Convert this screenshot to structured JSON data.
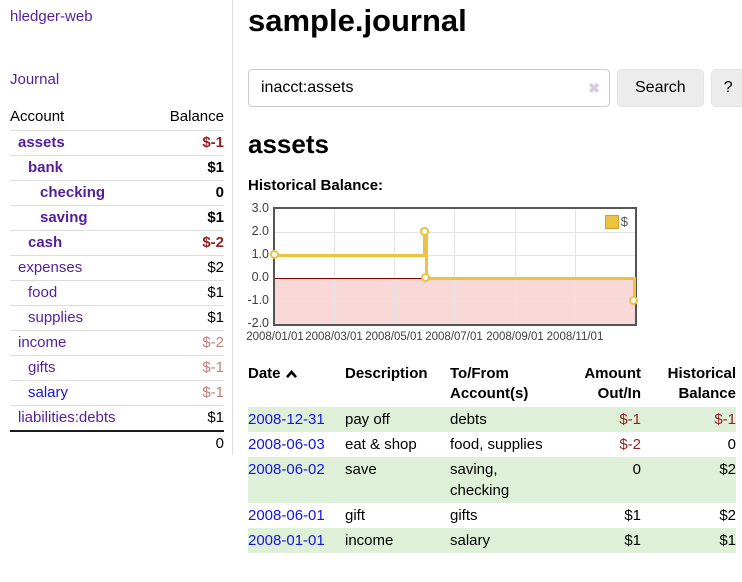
{
  "app_title": "hledger-web",
  "sidebar": {
    "journal_link": "Journal",
    "accounts": {
      "col_account": "Account",
      "col_balance": "Balance",
      "rows": [
        {
          "name": "assets",
          "balance": "$-1"
        },
        {
          "name": "bank",
          "balance": "$1"
        },
        {
          "name": "checking",
          "balance": "0"
        },
        {
          "name": "saving",
          "balance": "$1"
        },
        {
          "name": "cash",
          "balance": "$-2"
        },
        {
          "name": "expenses",
          "balance": "$2"
        },
        {
          "name": "food",
          "balance": "$1"
        },
        {
          "name": "supplies",
          "balance": "$1"
        },
        {
          "name": "income",
          "balance": "$-2"
        },
        {
          "name": "gifts",
          "balance": "$-1"
        },
        {
          "name": "salary",
          "balance": "$-1"
        },
        {
          "name": "liabilities:debts",
          "balance": "$1"
        }
      ],
      "total": "0"
    }
  },
  "main": {
    "title": "sample.journal",
    "search": {
      "value": "inacct:assets",
      "clear_icon": "✖",
      "button_label": "Search",
      "help_label": "?"
    },
    "account_heading": "assets",
    "section_label": "Historical Balance:",
    "register": {
      "headers": {
        "date": "Date",
        "description": "Description",
        "tofrom": "To/From Account(s)",
        "amount": "Amount Out/In",
        "balance": "Historical Balance"
      },
      "rows": [
        {
          "date": "2008-12-31",
          "description": "pay off",
          "accounts": "debts",
          "amount": "$-1",
          "balance": "$-1"
        },
        {
          "date": "2008-06-03",
          "description": "eat & shop",
          "accounts": "food, supplies",
          "amount": "$-2",
          "balance": "0"
        },
        {
          "date": "2008-06-02",
          "description": "save",
          "accounts": "saving, checking",
          "amount": "0",
          "balance": "$2"
        },
        {
          "date": "2008-06-01",
          "description": "gift",
          "accounts": "gifts",
          "amount": "$1",
          "balance": "$2"
        },
        {
          "date": "2008-01-01",
          "description": "income",
          "accounts": "salary",
          "amount": "$1",
          "balance": "$1"
        }
      ]
    }
  },
  "chart_data": {
    "type": "line",
    "title": "Historical Balance",
    "step": true,
    "series": [
      {
        "name": "$",
        "color": "#EDC240",
        "points": [
          [
            "2008-01-01",
            1
          ],
          [
            "2008-06-01",
            2
          ],
          [
            "2008-06-02",
            2
          ],
          [
            "2008-06-03",
            0
          ],
          [
            "2008-12-31",
            -1
          ]
        ]
      }
    ],
    "x_domain": [
      "2008-01-01",
      "2009-01-01"
    ],
    "ylim": [
      -2,
      3
    ],
    "x_ticks": [
      "2008/01/01",
      "2008/03/01",
      "2008/05/01",
      "2008/07/01",
      "2008/09/01",
      "2008/11/01"
    ],
    "y_ticks": [
      3.0,
      2.0,
      1.0,
      0.0,
      -1.0,
      -2.0
    ],
    "grid": true,
    "legend": {
      "label": "$",
      "position": "top-right"
    },
    "negative_region_color": "#f9d8d8",
    "zero_line_color": "#8b0000"
  }
}
